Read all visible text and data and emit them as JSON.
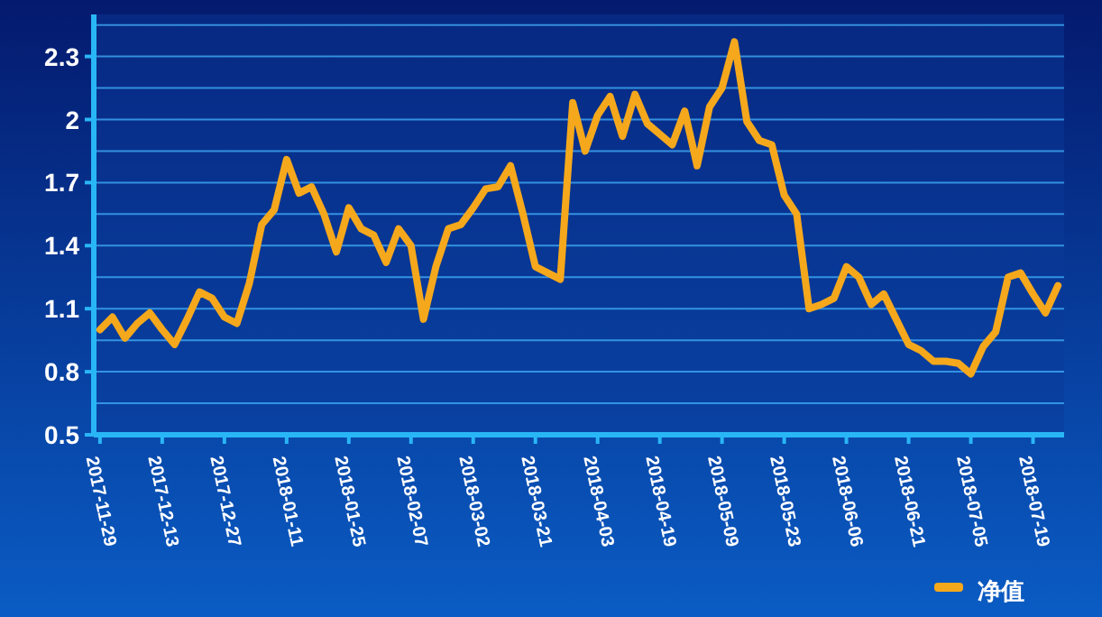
{
  "chart_data": {
    "type": "line",
    "categories": [
      "2017-11-29",
      null,
      null,
      null,
      null,
      "2017-12-13",
      null,
      null,
      null,
      null,
      "2017-12-27",
      null,
      null,
      null,
      null,
      "2018-01-11",
      null,
      null,
      null,
      null,
      "2018-01-25",
      null,
      null,
      null,
      null,
      "2018-02-07",
      null,
      null,
      null,
      null,
      "2018-03-02",
      null,
      null,
      null,
      null,
      "2018-03-21",
      null,
      null,
      null,
      null,
      "2018-04-03",
      null,
      null,
      null,
      null,
      "2018-04-19",
      null,
      null,
      null,
      null,
      "2018-05-09",
      null,
      null,
      null,
      null,
      "2018-05-23",
      null,
      null,
      null,
      null,
      "2018-06-06",
      null,
      null,
      null,
      null,
      "2018-06-21",
      null,
      null,
      null,
      null,
      "2018-07-05",
      null,
      null,
      null,
      null,
      "2018-07-19",
      null,
      null
    ],
    "series": [
      {
        "name": "净值",
        "color": "#f5a81c",
        "values": [
          1.0,
          1.06,
          0.96,
          1.03,
          1.08,
          1.0,
          0.93,
          1.05,
          1.18,
          1.15,
          1.06,
          1.03,
          1.22,
          1.5,
          1.57,
          1.81,
          1.65,
          1.68,
          1.55,
          1.37,
          1.58,
          1.48,
          1.45,
          1.32,
          1.48,
          1.4,
          1.05,
          1.3,
          1.48,
          1.5,
          1.58,
          1.67,
          1.68,
          1.78,
          1.55,
          1.3,
          1.27,
          1.24,
          2.08,
          1.85,
          2.02,
          2.11,
          1.92,
          2.12,
          1.98,
          1.93,
          1.88,
          2.04,
          1.78,
          2.06,
          2.15,
          2.37,
          1.99,
          1.9,
          1.88,
          1.64,
          1.55,
          1.1,
          1.12,
          1.15,
          1.3,
          1.25,
          1.12,
          1.17,
          1.05,
          0.93,
          0.9,
          0.85,
          0.85,
          0.84,
          0.79,
          0.92,
          0.99,
          1.25,
          1.27,
          1.17,
          1.08,
          1.21
        ]
      }
    ],
    "ylim": [
      0.5,
      2.5
    ],
    "yticks": [
      0.5,
      {
        "value": 0.65,
        "label": null
      },
      0.8,
      {
        "value": 0.95,
        "label": null
      },
      1.1,
      {
        "value": 1.25,
        "label": null
      },
      1.4,
      {
        "value": 1.55,
        "label": null
      },
      1.7,
      {
        "value": 1.85,
        "label": null
      },
      2,
      {
        "value": 2.15,
        "label": null
      },
      2.3,
      {
        "value": 2.45,
        "label": null
      }
    ],
    "grid": "y",
    "legend": "bottom right",
    "line_style": "solid",
    "marker": "none"
  }
}
